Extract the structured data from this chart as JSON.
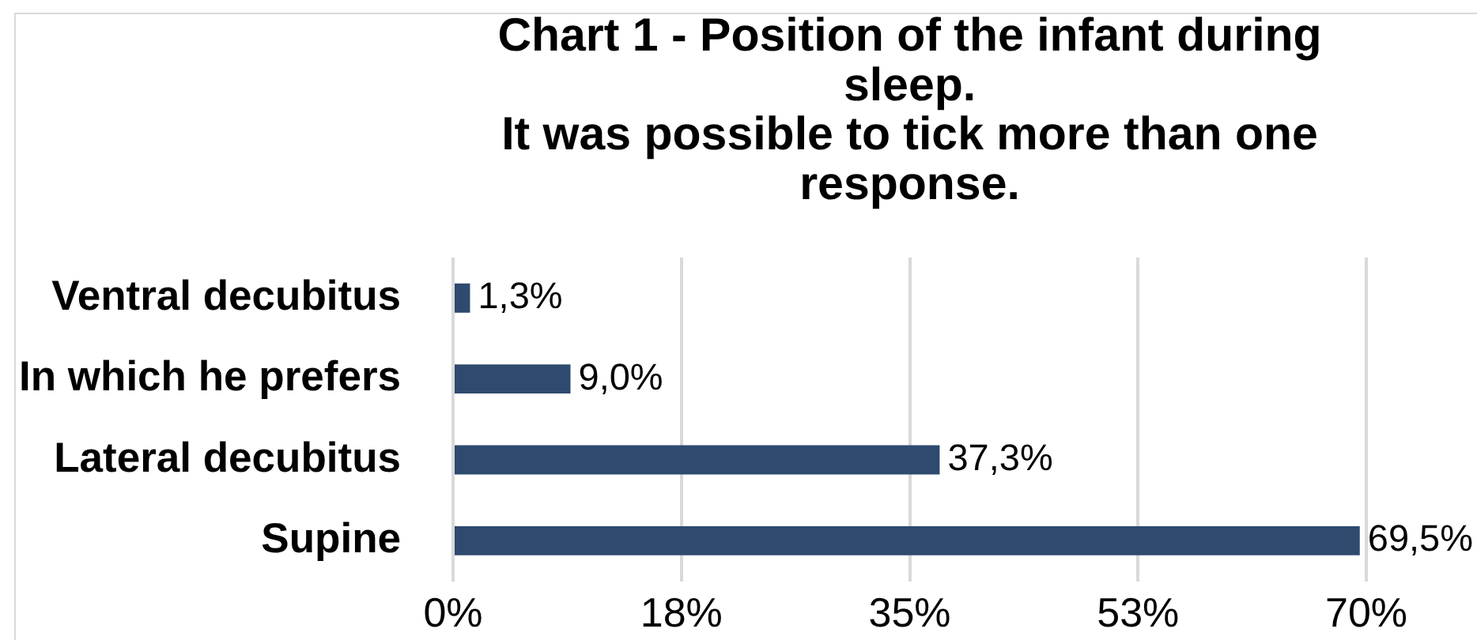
{
  "chart_data": {
    "type": "bar",
    "orientation": "horizontal",
    "title": "Chart 1 - Position of the infant during sleep.\nIt was possible to tick more than one response.",
    "categories": [
      "Ventral decubitus",
      "In which he prefers",
      "Lateral decubitus",
      "Supine"
    ],
    "values": [
      1.3,
      9.0,
      37.3,
      69.5
    ],
    "value_labels": [
      "1,3%",
      "9,0%",
      "37,3%",
      "69,5%"
    ],
    "color": "#2e4a6e",
    "xlim": [
      0,
      70
    ],
    "xticks": [
      {
        "value": 0,
        "label": "0%"
      },
      {
        "value": 17.5,
        "label": "18%"
      },
      {
        "value": 35,
        "label": "35%"
      },
      {
        "value": 52.5,
        "label": "53%"
      },
      {
        "value": 70,
        "label": "70%"
      }
    ],
    "grid": "x"
  }
}
